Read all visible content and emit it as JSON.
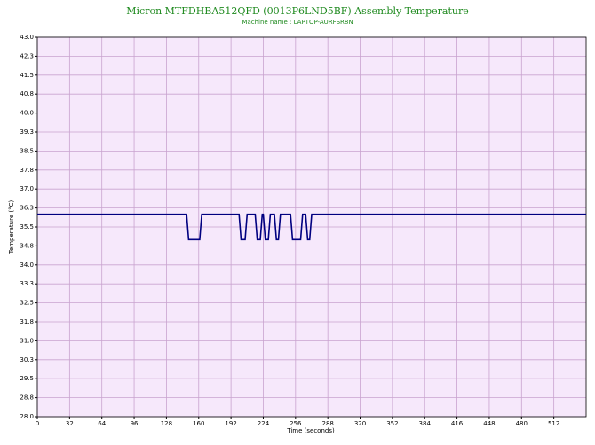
{
  "chart_data": {
    "type": "line",
    "title": "Micron MTFDHBA512QFD (0013P6LND5BF) Assembly Temperature",
    "subtitle": "Machine name : LAPTOP-AURFSR8N",
    "x_label": "Time (seconds)",
    "y_label": "Temperature (°C)",
    "x": [
      0,
      148,
      150,
      161,
      163,
      200,
      202,
      206,
      208,
      216,
      218,
      221,
      223,
      224,
      226,
      229,
      231,
      235,
      237,
      239,
      241,
      251,
      253,
      261,
      263,
      266,
      268,
      270,
      272,
      544
    ],
    "series": [
      {
        "name": "Temperature",
        "color": "#000080",
        "values": [
          36,
          36,
          35,
          35,
          36,
          36,
          35,
          35,
          36,
          36,
          35,
          35,
          36,
          36,
          35,
          35,
          36,
          36,
          35,
          35,
          36,
          36,
          35,
          35,
          36,
          36,
          35,
          35,
          36,
          36
        ]
      }
    ],
    "xlim": [
      0,
      544
    ],
    "xticks": [
      0,
      32,
      64,
      96,
      128,
      160,
      192,
      224,
      256,
      288,
      320,
      352,
      384,
      416,
      448,
      480,
      512
    ],
    "ylim": [
      28,
      43
    ],
    "yticks": [
      {
        "value": 28,
        "label": "28.0"
      },
      {
        "value": 28.75,
        "label": "28.8"
      },
      29.5,
      {
        "value": 30.25,
        "label": "30.3"
      },
      {
        "value": 31,
        "label": "31.0"
      },
      {
        "value": 31.75,
        "label": "31.8"
      },
      32.5,
      {
        "value": 33.25,
        "label": "33.3"
      },
      {
        "value": 34,
        "label": "34.0"
      },
      {
        "value": 34.75,
        "label": "34.8"
      },
      35.5,
      {
        "value": 36.25,
        "label": "36.3"
      },
      {
        "value": 37,
        "label": "37.0"
      },
      {
        "value": 37.75,
        "label": "37.8"
      },
      38.5,
      {
        "value": 39.25,
        "label": "39.3"
      },
      {
        "value": 40,
        "label": "40.0"
      },
      {
        "value": 40.75,
        "label": "40.8"
      },
      41.5,
      {
        "value": 42.25,
        "label": "42.3"
      },
      {
        "value": 43,
        "label": "43.0"
      }
    ],
    "grid": true,
    "background": "#f6e8fb",
    "grid_color": "#c9a3cf"
  }
}
